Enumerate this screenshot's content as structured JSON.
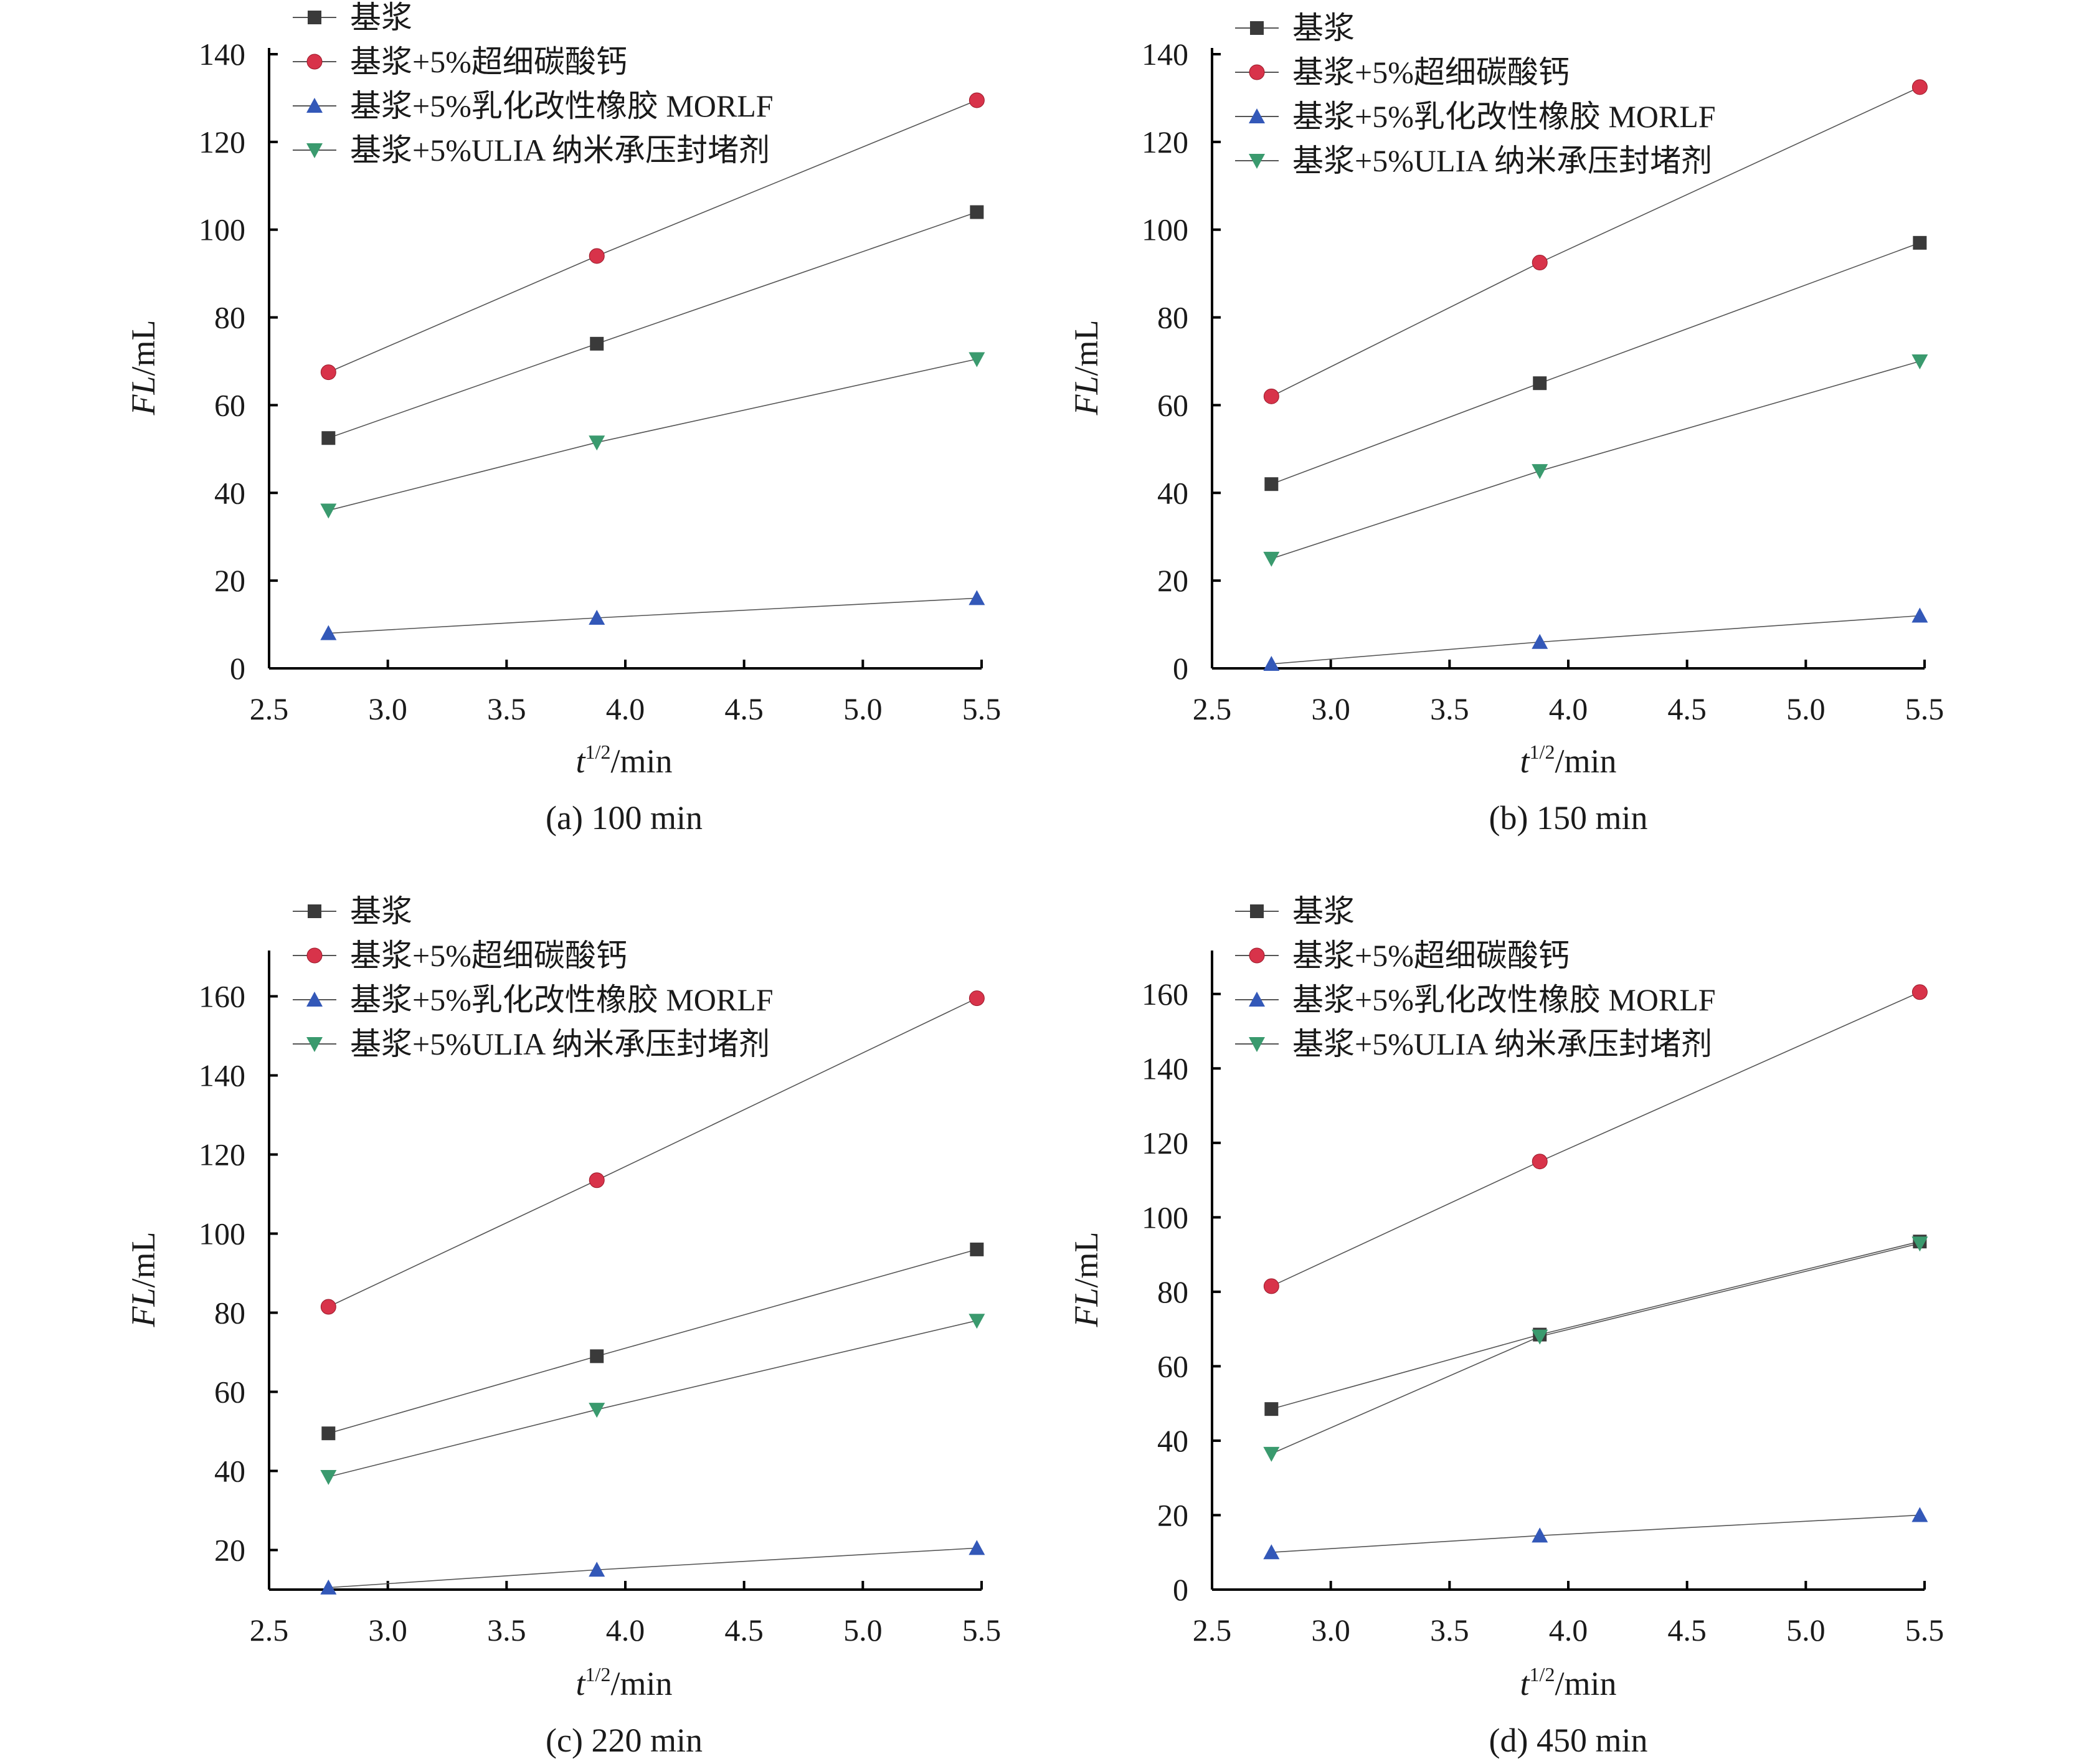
{
  "chart_data": [
    {
      "type": "line",
      "caption": "(a) 100 min",
      "xlabel_italic": "t",
      "xlabel_sup": "1/2",
      "xlabel_rest": "/min",
      "ylabel_italic": "FL",
      "ylabel_rest": "/mL",
      "xlim": [
        2.5,
        5.5
      ],
      "ylim": [
        0,
        140
      ],
      "xticks": [
        "2.5",
        "3.0",
        "3.5",
        "4.0",
        "4.5",
        "5.0",
        "5.5"
      ],
      "yticks": [
        "0",
        "20",
        "40",
        "60",
        "80",
        "100",
        "120",
        "140"
      ],
      "legend": [
        "基浆",
        "基浆+5%超细碳酸钙",
        "基浆+5%乳化改性橡胶 MORLF",
        "基浆+5%ULIA 纳米承压封堵剂"
      ],
      "x": [
        2.75,
        3.88,
        5.48
      ],
      "series": [
        {
          "name": "基浆",
          "marker": "square",
          "color": "#3a3a3a",
          "values": [
            52.5,
            74,
            104
          ]
        },
        {
          "name": "基浆+5%超细碳酸钙",
          "marker": "circle",
          "color": "#d8334a",
          "values": [
            67.5,
            94,
            129.5
          ]
        },
        {
          "name": "基浆+5%乳化改性橡胶 MORLF",
          "marker": "triangle-up",
          "color": "#3358b8",
          "values": [
            8,
            11.5,
            16
          ]
        },
        {
          "name": "基浆+5%ULIA 纳米承压封堵剂",
          "marker": "triangle-down",
          "color": "#3a9a6e",
          "values": [
            36,
            51.5,
            70.5
          ]
        }
      ]
    },
    {
      "type": "line",
      "caption": "(b) 150 min",
      "xlabel_italic": "t",
      "xlabel_sup": "1/2",
      "xlabel_rest": "/min",
      "ylabel_italic": "FL",
      "ylabel_rest": "/mL",
      "xlim": [
        2.5,
        5.5
      ],
      "ylim": [
        0,
        140
      ],
      "xticks": [
        "2.5",
        "3.0",
        "3.5",
        "4.0",
        "4.5",
        "5.0",
        "5.5"
      ],
      "yticks": [
        "0",
        "20",
        "40",
        "60",
        "80",
        "100",
        "120",
        "140"
      ],
      "legend": [
        "基浆",
        "基浆+5%超细碳酸钙",
        "基浆+5%乳化改性橡胶 MORLF",
        "基浆+5%ULIA 纳米承压封堵剂"
      ],
      "x": [
        2.75,
        3.88,
        5.48
      ],
      "series": [
        {
          "name": "基浆",
          "marker": "square",
          "color": "#3a3a3a",
          "values": [
            42,
            65,
            97
          ]
        },
        {
          "name": "基浆+5%超细碳酸钙",
          "marker": "circle",
          "color": "#d8334a",
          "values": [
            62,
            92.5,
            132.5
          ]
        },
        {
          "name": "基浆+5%乳化改性橡胶 MORLF",
          "marker": "triangle-up",
          "color": "#3358b8",
          "values": [
            1,
            6,
            12
          ]
        },
        {
          "name": "基浆+5%ULIA 纳米承压封堵剂",
          "marker": "triangle-down",
          "color": "#3a9a6e",
          "values": [
            25,
            45,
            70
          ]
        }
      ]
    },
    {
      "type": "line",
      "caption": "(c) 220 min",
      "xlabel_italic": "t",
      "xlabel_sup": "1/2",
      "xlabel_rest": "/min",
      "ylabel_italic": "FL",
      "ylabel_rest": "/mL",
      "xlim": [
        2.5,
        5.5
      ],
      "ylim": [
        10,
        170
      ],
      "xticks": [
        "2.5",
        "3.0",
        "3.5",
        "4.0",
        "4.5",
        "5.0",
        "5.5"
      ],
      "yticks": [
        "20",
        "40",
        "60",
        "80",
        "100",
        "120",
        "140",
        "160"
      ],
      "legend": [
        "基浆",
        "基浆+5%超细碳酸钙",
        "基浆+5%乳化改性橡胶 MORLF",
        "基浆+5%ULIA 纳米承压封堵剂"
      ],
      "x": [
        2.75,
        3.88,
        5.48
      ],
      "series": [
        {
          "name": "基浆",
          "marker": "square",
          "color": "#3a3a3a",
          "values": [
            49.5,
            69,
            96
          ]
        },
        {
          "name": "基浆+5%超细碳酸钙",
          "marker": "circle",
          "color": "#d8334a",
          "values": [
            81.5,
            113.5,
            159.5
          ]
        },
        {
          "name": "基浆+5%乳化改性橡胶 MORLF",
          "marker": "triangle-up",
          "color": "#3358b8",
          "values": [
            10.5,
            15,
            20.5
          ]
        },
        {
          "name": "基浆+5%ULIA 纳米承压封堵剂",
          "marker": "triangle-down",
          "color": "#3a9a6e",
          "values": [
            38.5,
            55.5,
            78
          ]
        }
      ]
    },
    {
      "type": "line",
      "caption": "(d) 450 min",
      "xlabel_italic": "t",
      "xlabel_sup": "1/2",
      "xlabel_rest": "/min",
      "ylabel_italic": "FL",
      "ylabel_rest": "/mL",
      "xlim": [
        2.5,
        5.5
      ],
      "ylim": [
        0,
        170
      ],
      "xticks": [
        "2.5",
        "3.0",
        "3.5",
        "4.0",
        "4.5",
        "5.0",
        "5.5"
      ],
      "yticks": [
        "0",
        "20",
        "40",
        "60",
        "80",
        "100",
        "120",
        "140",
        "160"
      ],
      "legend": [
        "基浆",
        "基浆+5%超细碳酸钙",
        "基浆+5%乳化改性橡胶 MORLF",
        "基浆+5%ULIA 纳米承压封堵剂"
      ],
      "x": [
        2.75,
        3.88,
        5.48
      ],
      "series": [
        {
          "name": "基浆",
          "marker": "square",
          "color": "#3a3a3a",
          "values": [
            48.5,
            68.5,
            93.5
          ]
        },
        {
          "name": "基浆+5%超细碳酸钙",
          "marker": "circle",
          "color": "#d8334a",
          "values": [
            81.5,
            115,
            160.5
          ]
        },
        {
          "name": "基浆+5%乳化改性橡胶 MORLF",
          "marker": "triangle-up",
          "color": "#3358b8",
          "values": [
            10,
            14.5,
            20
          ]
        },
        {
          "name": "基浆+5%ULIA 纳米承压封堵剂",
          "marker": "triangle-down",
          "color": "#3a9a6e",
          "values": [
            36.5,
            68,
            93
          ]
        }
      ]
    }
  ]
}
